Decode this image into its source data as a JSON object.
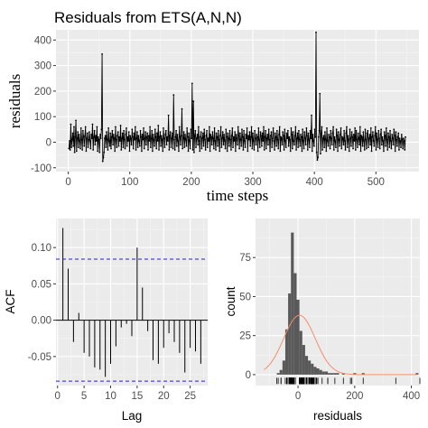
{
  "chart_data": [
    {
      "type": "line",
      "title": "Residuals from ETS(A,N,N)",
      "xlabel": "time steps",
      "ylabel": "residuals",
      "xlim": [
        -20,
        570
      ],
      "ylim": [
        -115,
        440
      ],
      "xticks": [
        "0",
        "100",
        "200",
        "300",
        "400",
        "500"
      ],
      "yticks": [
        "-100",
        "0",
        "100",
        "200",
        "300",
        "400"
      ],
      "grid": true,
      "line_color": "#000000",
      "x_start": 1,
      "x_end": 548,
      "values": [
        -25,
        5,
        -30,
        70,
        -20,
        10,
        35,
        -15,
        60,
        -40,
        20,
        85,
        -35,
        15,
        40,
        -20,
        30,
        5,
        -25,
        55,
        10,
        -30,
        45,
        20,
        -15,
        25,
        60,
        -35,
        15,
        35,
        -20,
        10,
        40,
        5,
        -25,
        30,
        15,
        70,
        -30,
        20,
        45,
        -10,
        25,
        5,
        60,
        -35,
        20,
        10,
        -40,
        30,
        15,
        50,
        345,
        -75,
        -60,
        -40,
        15,
        25,
        -20,
        40,
        10,
        -30,
        55,
        5,
        -15,
        35,
        -25,
        20,
        45,
        -10,
        30,
        15,
        -35,
        60,
        10,
        -20,
        25,
        40,
        -15,
        20,
        5,
        65,
        -30,
        15,
        35,
        -20,
        45,
        10,
        -25,
        30,
        55,
        -15,
        20,
        5,
        40,
        -35,
        25,
        15,
        -10,
        50,
        20,
        -25,
        35,
        10,
        60,
        -30,
        15,
        40,
        -20,
        25,
        5,
        -15,
        45,
        20,
        -35,
        30,
        10,
        55,
        -25,
        15,
        40,
        -10,
        20,
        35,
        -30,
        25,
        5,
        60,
        -20,
        15,
        45,
        -35,
        30,
        10,
        -15,
        50,
        20,
        -25,
        35,
        5,
        65,
        -30,
        20,
        40,
        -15,
        25,
        10,
        -35,
        55,
        15,
        -20,
        30,
        45,
        -10,
        20,
        5,
        105,
        -30,
        25,
        40,
        -20,
        15,
        35,
        -25,
        185,
        10,
        -30,
        20,
        45,
        -15,
        30,
        5,
        -35,
        60,
        20,
        -10,
        25,
        130,
        -25,
        15,
        40,
        -20,
        30,
        10,
        -15,
        55,
        20,
        -35,
        35,
        5,
        -25,
        50,
        15,
        230,
        -30,
        160,
        -40,
        25,
        45,
        -20,
        15,
        30,
        -10,
        60,
        5,
        -35,
        20,
        40,
        -25,
        15,
        35,
        -15,
        50,
        10,
        -30,
        25,
        45,
        -20,
        15,
        5,
        60,
        -35,
        30,
        20,
        -10,
        40,
        15,
        -25,
        55,
        5,
        -30,
        35,
        20,
        -15,
        45,
        10,
        -35,
        25,
        60,
        -20,
        15,
        40,
        -10,
        30,
        5,
        -25,
        50,
        20,
        -35,
        35,
        15,
        -15,
        45,
        10,
        -30,
        25,
        55,
        -20,
        20,
        5,
        40,
        -35,
        30,
        15,
        -10,
        60,
        25,
        -25,
        35,
        10,
        -15,
        50,
        20,
        -30,
        45,
        5,
        -20,
        30,
        15,
        55,
        -35,
        25,
        10,
        40,
        -15,
        20,
        60,
        -25,
        35,
        5,
        -30,
        45,
        15,
        -10,
        30,
        20,
        -35,
        55,
        10,
        -20,
        40,
        25,
        -15,
        35,
        5,
        60,
        -30,
        20,
        45,
        -25,
        15,
        30,
        -10,
        50,
        10,
        -35,
        25,
        40,
        -20,
        15,
        55,
        5,
        -30,
        35,
        20,
        -15,
        45,
        10,
        -25,
        30,
        60,
        -35,
        20,
        15,
        -10,
        40,
        25,
        -30,
        50,
        5,
        -20,
        35,
        15,
        45,
        -15,
        20,
        10,
        -35,
        55,
        30,
        -25,
        40,
        5,
        -10,
        25,
        60,
        -30,
        15,
        35,
        -20,
        45,
        10,
        -15,
        30,
        20,
        -35,
        50,
        5,
        -25,
        40,
        15,
        -10,
        55,
        25,
        -30,
        35,
        10,
        -20,
        45,
        15,
        105,
        -35,
        30,
        5,
        -15,
        50,
        20,
        430,
        -40,
        -70,
        -60,
        20,
        45,
        190,
        -45,
        35,
        60,
        -30,
        15,
        25,
        -20,
        40,
        10,
        -35,
        55,
        5,
        -15,
        30,
        20,
        -25,
        45,
        15,
        -10,
        35,
        60,
        -30,
        20,
        5,
        -20,
        50,
        25,
        -35,
        40,
        10,
        -15,
        30,
        55,
        -25,
        20,
        15,
        -10,
        45,
        5,
        -30,
        35,
        60,
        -20,
        25,
        10,
        -35,
        50,
        15,
        -15,
        40,
        20,
        -25,
        30,
        5,
        55,
        -30,
        45,
        10,
        -20,
        35,
        15,
        -10,
        60,
        -35,
        25,
        20,
        -15,
        40,
        5,
        -30,
        50,
        10,
        -25,
        35,
        45,
        -20,
        15,
        30,
        -10,
        55,
        -35,
        20,
        40,
        5,
        -15,
        25,
        60,
        -30,
        35,
        10,
        -20,
        45,
        15,
        -25,
        30,
        50,
        -10,
        20,
        5,
        -35,
        40,
        25,
        -15,
        55,
        10,
        -30,
        35,
        20,
        -20,
        45,
        5,
        -25,
        30,
        15,
        -10,
        50,
        25,
        -35,
        40,
        10,
        -15,
        20,
        35,
        -30,
        15,
        5,
        -20,
        30,
        10,
        -25,
        15,
        5,
        -30,
        20
      ]
    },
    {
      "type": "bar",
      "ylabel": "ACF",
      "xlabel": "Lag",
      "xlim": [
        -0.3,
        28.3
      ],
      "ylim": [
        -0.09,
        0.14
      ],
      "xticks": [
        "0",
        "5",
        "10",
        "15",
        "20",
        "25"
      ],
      "yticks": [
        "-0.05",
        "0.00",
        "0.05",
        "0.10"
      ],
      "lags": [
        1,
        2,
        3,
        4,
        5,
        6,
        7,
        8,
        9,
        10,
        11,
        12,
        13,
        14,
        15,
        16,
        17,
        18,
        19,
        20,
        21,
        22,
        23,
        24,
        25,
        26,
        27
      ],
      "values": [
        0.127,
        0.071,
        -0.03,
        0.01,
        -0.045,
        -0.05,
        -0.065,
        -0.068,
        -0.078,
        -0.06,
        -0.036,
        -0.01,
        -0.005,
        -0.022,
        0.1,
        0.045,
        -0.015,
        -0.055,
        -0.06,
        -0.038,
        -0.018,
        -0.03,
        -0.045,
        -0.072,
        -0.038,
        -0.043,
        -0.06
      ],
      "conf_bound": 0.084,
      "bar_color": "#000000",
      "bound_color": "#2222cc",
      "grid": true
    },
    {
      "type": "histogram",
      "xlabel": "residuals",
      "ylabel": "count",
      "xlim": [
        -150,
        430
      ],
      "ylim": [
        -7,
        100
      ],
      "xticks": [
        "0",
        "200",
        "400"
      ],
      "yticks": [
        "0",
        "25",
        "50",
        "75"
      ],
      "bin_start": -75,
      "bin_width": 10,
      "counts": [
        1,
        3,
        9,
        29,
        52,
        91,
        65,
        48,
        28,
        19,
        12,
        9,
        7,
        5,
        4,
        3,
        2,
        2,
        1,
        1,
        1,
        1,
        0,
        1,
        0,
        0,
        0,
        1,
        0,
        0,
        1,
        0,
        0,
        0,
        0,
        0,
        0,
        0,
        0,
        0,
        0,
        0,
        0,
        0,
        0,
        0,
        0,
        0,
        0,
        1
      ],
      "bar_color": "#595959",
      "normal_curve": {
        "mean": 5,
        "sd": 56,
        "peak": 38,
        "color": "#f28e6b"
      },
      "grid": true
    }
  ]
}
